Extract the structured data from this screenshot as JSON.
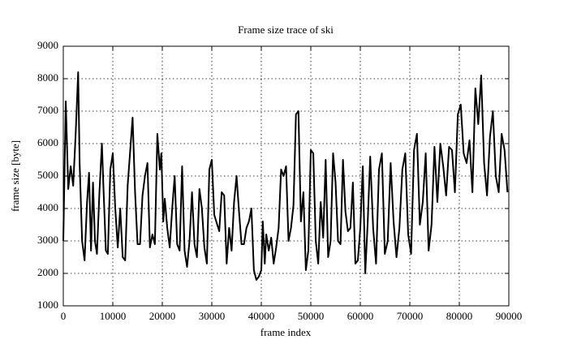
{
  "chart_data": {
    "type": "line",
    "title": "Frame size trace of ski",
    "x_label": "frame index",
    "y_label": "frame size [byte]",
    "x": [
      0,
      500,
      1000,
      1500,
      2000,
      2500,
      3000,
      3300,
      3800,
      4300,
      4800,
      5200,
      5600,
      6000,
      6400,
      6800,
      7300,
      7800,
      8100,
      8600,
      9000,
      9500,
      10000,
      10500,
      11000,
      11500,
      12000,
      12500,
      13000,
      14000,
      14500,
      15000,
      15500,
      16000,
      16500,
      17000,
      17500,
      18000,
      18500,
      19000,
      19500,
      19800,
      20200,
      20500,
      21000,
      21500,
      22000,
      22500,
      23000,
      23500,
      24000,
      24500,
      25000,
      25500,
      26000,
      26500,
      27000,
      27500,
      28000,
      28500,
      29000,
      29500,
      30000,
      30500,
      31500,
      32000,
      32500,
      33000,
      33500,
      34000,
      34500,
      35000,
      35500,
      36000,
      36500,
      37000,
      37500,
      38000,
      38500,
      39000,
      39500,
      40000,
      40300,
      40700,
      41000,
      41500,
      42000,
      42500,
      43000,
      43500,
      44000,
      44500,
      45000,
      45500,
      46000,
      46500,
      47000,
      47500,
      48000,
      48500,
      49000,
      49500,
      50000,
      50500,
      51000,
      51500,
      52000,
      52500,
      53000,
      53500,
      54000,
      54500,
      55000,
      55500,
      56000,
      56500,
      57000,
      57500,
      58000,
      58500,
      59000,
      59500,
      60000,
      60500,
      61000,
      61500,
      62000,
      62590,
      63180,
      63770,
      64360,
      64950,
      65540,
      66130,
      66720,
      67310,
      67900,
      68490,
      69080,
      69670,
      70260,
      70850,
      71440,
      72030,
      72620,
      73210,
      73800,
      74390,
      74980,
      75570,
      76160,
      76750,
      77340,
      77930,
      78520,
      79110,
      79700,
      80290,
      80880,
      81470,
      82060,
      82650,
      83240,
      83830,
      84420,
      85010,
      85600,
      86190,
      86780,
      87370,
      87960,
      88550,
      89140,
      89730
    ],
    "series": [
      {
        "name": "ski",
        "color": "#000000",
        "values": [
          3000,
          7300,
          4600,
          5300,
          4700,
          6300,
          8200,
          5400,
          3000,
          2400,
          4200,
          5100,
          2700,
          4800,
          3000,
          2600,
          4500,
          6000,
          4700,
          2700,
          2600,
          5200,
          5700,
          4000,
          2800,
          4000,
          2500,
          2400,
          4700,
          6800,
          4500,
          2900,
          2900,
          4400,
          5000,
          5400,
          2800,
          3200,
          2900,
          6300,
          5200,
          5700,
          3600,
          4300,
          3400,
          2800,
          4000,
          5000,
          2900,
          2700,
          5300,
          2700,
          2200,
          3000,
          4500,
          2900,
          2500,
          4600,
          4000,
          2800,
          2300,
          5200,
          5500,
          3800,
          3300,
          4500,
          4400,
          2300,
          3400,
          2700,
          4200,
          5000,
          3900,
          2900,
          2900,
          3400,
          3600,
          4000,
          2100,
          1800,
          1900,
          2100,
          3600,
          2300,
          3200,
          2700,
          3100,
          2300,
          2800,
          3400,
          5200,
          5000,
          5300,
          3000,
          3400,
          4100,
          6900,
          7000,
          3600,
          4500,
          2100,
          2700,
          5800,
          5700,
          3000,
          2300,
          4200,
          3100,
          5500,
          2500,
          3000,
          5700,
          4800,
          3000,
          2900,
          5500,
          3900,
          3300,
          3400,
          4800,
          2300,
          2400,
          3400,
          5300,
          2000,
          3600,
          5600,
          3400,
          2300,
          5200,
          5700,
          2600,
          3000,
          5400,
          3600,
          2500,
          3400,
          5200,
          5700,
          3200,
          2600,
          5800,
          6300,
          3500,
          4200,
          5700,
          2700,
          3500,
          5900,
          4200,
          6000,
          5300,
          4400,
          5900,
          5800,
          4500,
          6900,
          7200,
          5700,
          5400,
          6100,
          4500,
          7700,
          6600,
          8100,
          5400,
          4400,
          6200,
          7000,
          5000,
          4500,
          6300,
          5800,
          4500
        ]
      }
    ],
    "xlim": [
      0,
      90000
    ],
    "ylim": [
      1000,
      9000
    ],
    "xticks": [
      0,
      10000,
      20000,
      30000,
      40000,
      50000,
      60000,
      70000,
      80000,
      90000
    ],
    "yticks": [
      1000,
      2000,
      3000,
      4000,
      5000,
      6000,
      7000,
      8000,
      9000
    ],
    "grid": true
  }
}
